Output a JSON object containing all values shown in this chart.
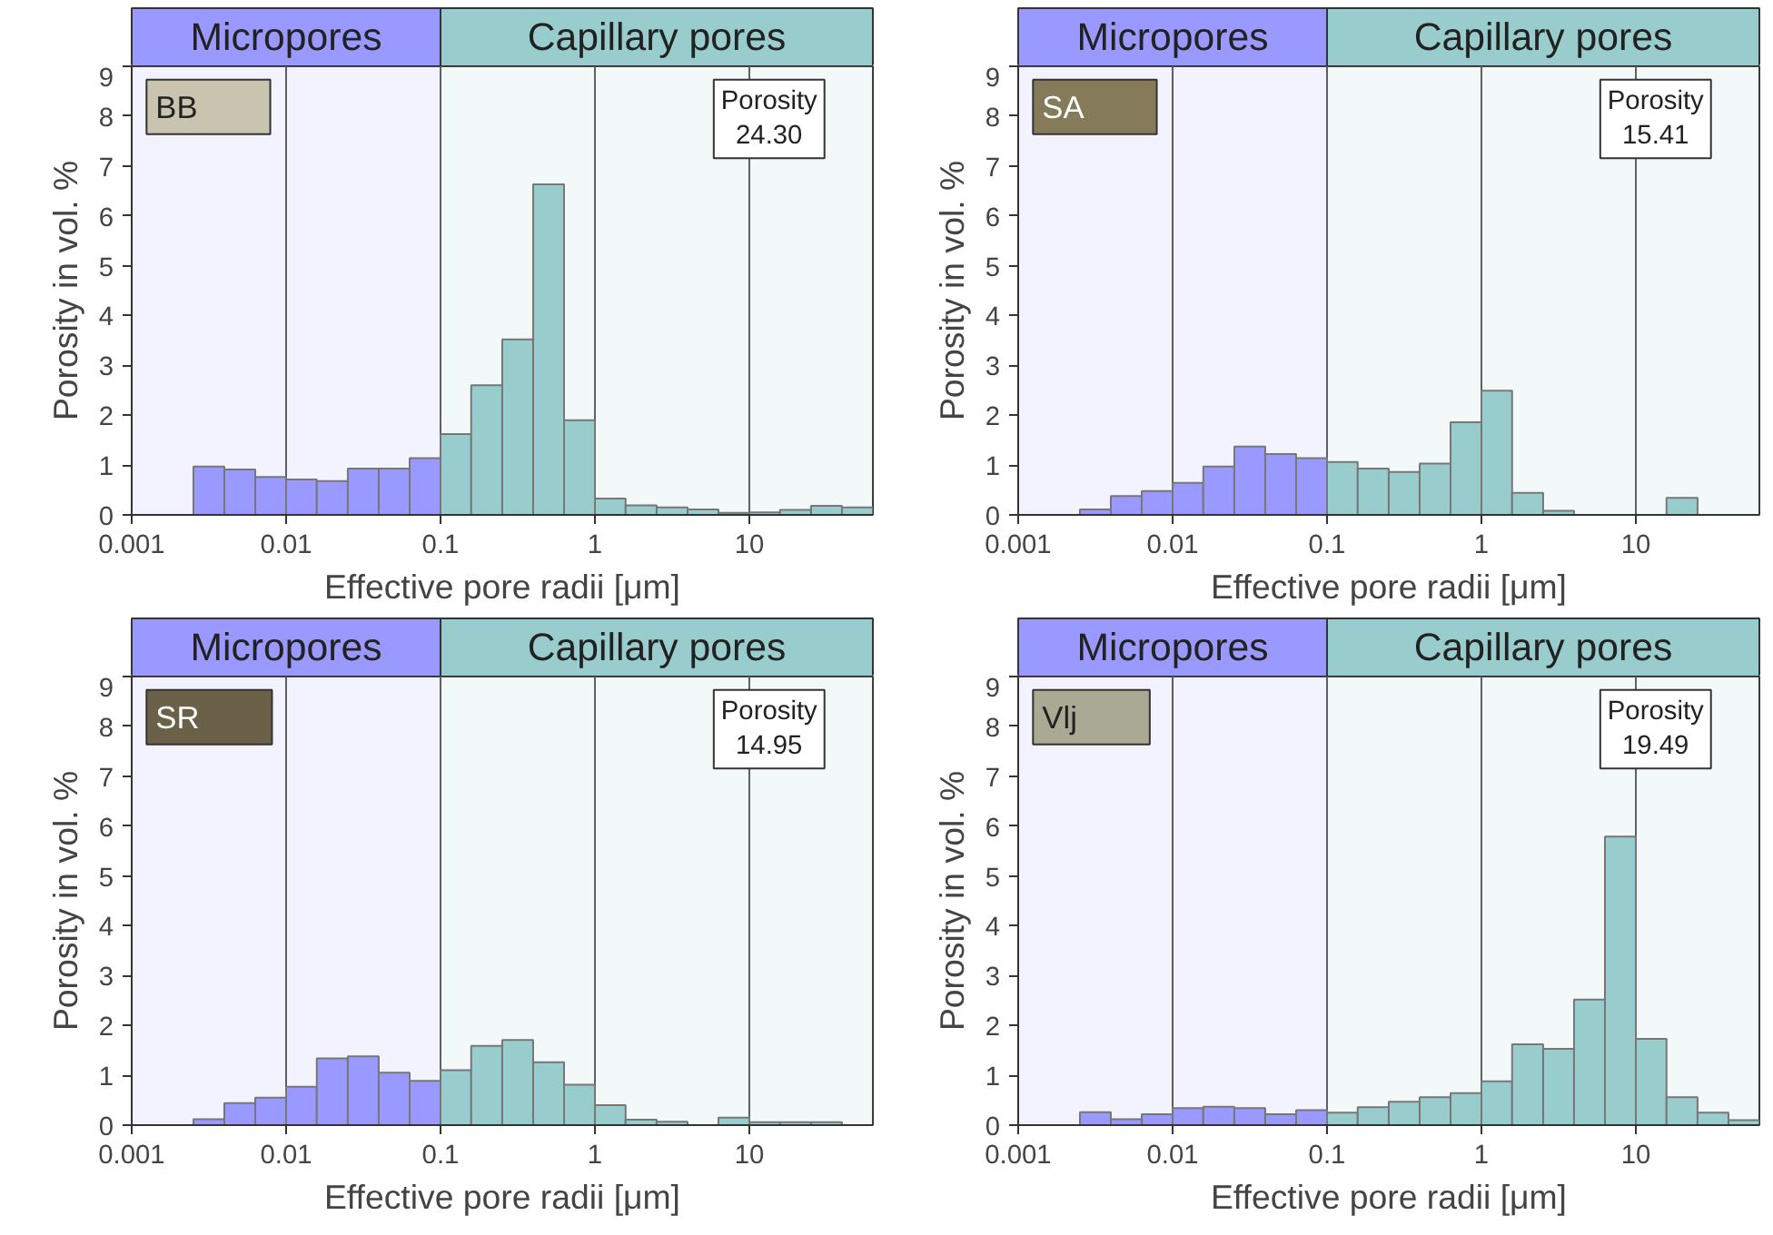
{
  "chart_data": [
    {
      "type": "histogram",
      "title": "BB",
      "xlabel": "Effective pore radii [μm]",
      "ylabel": "Porosity in vol. %",
      "annotations": [
        "Porosity\n24.30"
      ],
      "bins": [
        0.00251,
        0.00398,
        0.00631,
        0.01,
        0.0158,
        0.0251,
        0.0398,
        0.0631,
        0.1,
        0.158,
        0.251,
        0.398,
        0.631,
        1,
        1.58,
        2.51,
        3.98,
        6.31,
        10,
        15.8,
        25.1,
        39.8,
        63.1
      ],
      "values": [
        0.97,
        0.91,
        0.76,
        0.71,
        0.68,
        0.93,
        0.93,
        1.14,
        1.62,
        2.6,
        3.52,
        6.63,
        1.9,
        0.33,
        0.19,
        0.15,
        0.11,
        0.04,
        0.05,
        0.1,
        0.18,
        0.15
      ],
      "colors": [
        "#9999ff",
        "#9999ff",
        "#9999ff",
        "#9999ff",
        "#9999ff",
        "#9999ff",
        "#9999ff",
        "#9999ff",
        "#99cccc",
        "#99cccc",
        "#99cccc",
        "#99cccc",
        "#99cccc",
        "#99cccc",
        "#99cccc",
        "#99cccc",
        "#99cccc",
        "#99cccc",
        "#99cccc",
        "#99cccc",
        "#99cccc",
        "#99cccc"
      ],
      "bands": [
        {
          "axis": "x",
          "from": 0.001,
          "to": 0.1,
          "label": "Micropores",
          "color": "#9999ff"
        },
        {
          "axis": "x",
          "from": 0.1,
          "to": 63.1,
          "label": "Capillary pores",
          "color": "#99cccc"
        }
      ],
      "log": "x",
      "xlim": [
        0.001,
        63.1
      ],
      "xticks": [
        0.001,
        0.01,
        0.1,
        1,
        10
      ],
      "ylim": [
        0,
        9
      ],
      "yticks": [
        0,
        1,
        2,
        3,
        4,
        5,
        6,
        7,
        8,
        9
      ],
      "grid": "x"
    },
    {
      "type": "histogram",
      "title": "SA",
      "xlabel": "Effective pore radii [μm]",
      "ylabel": "Porosity in vol. %",
      "annotations": [
        "Porosity\n15.41"
      ],
      "bins": [
        0.00251,
        0.00398,
        0.00631,
        0.01,
        0.0158,
        0.0251,
        0.0398,
        0.0631,
        0.1,
        0.158,
        0.251,
        0.398,
        0.631,
        1,
        1.58,
        2.51,
        3.98,
        6.31,
        10,
        15.8,
        25.1,
        39.8,
        63.1
      ],
      "values": [
        0.11,
        0.38,
        0.48,
        0.64,
        0.97,
        1.37,
        1.22,
        1.14,
        1.06,
        0.93,
        0.86,
        1.03,
        1.86,
        2.49,
        0.44,
        0.08,
        0,
        0,
        0,
        0.34,
        0,
        0
      ],
      "colors": [
        "#9999ff",
        "#9999ff",
        "#9999ff",
        "#9999ff",
        "#9999ff",
        "#9999ff",
        "#9999ff",
        "#9999ff",
        "#99cccc",
        "#99cccc",
        "#99cccc",
        "#99cccc",
        "#99cccc",
        "#99cccc",
        "#99cccc",
        "#99cccc",
        "#99cccc",
        "#99cccc",
        "#99cccc",
        "#99cccc",
        "#99cccc",
        "#99cccc"
      ],
      "bands": [
        {
          "axis": "x",
          "from": 0.001,
          "to": 0.1,
          "label": "Micropores",
          "color": "#9999ff"
        },
        {
          "axis": "x",
          "from": 0.1,
          "to": 63.1,
          "label": "Capillary pores",
          "color": "#99cccc"
        }
      ],
      "log": "x",
      "xlim": [
        0.001,
        63.1
      ],
      "xticks": [
        0.001,
        0.01,
        0.1,
        1,
        10
      ],
      "ylim": [
        0,
        9
      ],
      "yticks": [
        0,
        1,
        2,
        3,
        4,
        5,
        6,
        7,
        8,
        9
      ],
      "grid": "x"
    },
    {
      "type": "histogram",
      "title": "SR",
      "xlabel": "Effective pore radii [μm]",
      "ylabel": "Porosity in vol. %",
      "annotations": [
        "Porosity\n14.95"
      ],
      "bins": [
        0.00251,
        0.00398,
        0.00631,
        0.01,
        0.0158,
        0.0251,
        0.0398,
        0.0631,
        0.1,
        0.158,
        0.251,
        0.398,
        0.631,
        1,
        1.58,
        2.51,
        3.98,
        6.31,
        10,
        15.8,
        25.1,
        39.8,
        63.1
      ],
      "values": [
        0.12,
        0.44,
        0.55,
        0.77,
        1.34,
        1.38,
        1.05,
        0.89,
        1.1,
        1.59,
        1.71,
        1.26,
        0.81,
        0.4,
        0.11,
        0.07,
        0,
        0.15,
        0.06,
        0.06,
        0.06,
        0
      ],
      "colors": [
        "#9999ff",
        "#9999ff",
        "#9999ff",
        "#9999ff",
        "#9999ff",
        "#9999ff",
        "#9999ff",
        "#9999ff",
        "#99cccc",
        "#99cccc",
        "#99cccc",
        "#99cccc",
        "#99cccc",
        "#99cccc",
        "#99cccc",
        "#99cccc",
        "#99cccc",
        "#99cccc",
        "#99cccc",
        "#99cccc",
        "#99cccc",
        "#99cccc"
      ],
      "bands": [
        {
          "axis": "x",
          "from": 0.001,
          "to": 0.1,
          "label": "Micropores",
          "color": "#9999ff"
        },
        {
          "axis": "x",
          "from": 0.1,
          "to": 63.1,
          "label": "Capillary pores",
          "color": "#99cccc"
        }
      ],
      "log": "x",
      "xlim": [
        0.001,
        63.1
      ],
      "xticks": [
        0.001,
        0.01,
        0.1,
        1,
        10
      ],
      "ylim": [
        0,
        9
      ],
      "yticks": [
        0,
        1,
        2,
        3,
        4,
        5,
        6,
        7,
        8,
        9
      ],
      "grid": "x"
    },
    {
      "type": "histogram",
      "title": "Vlj",
      "xlabel": "Effective pore radii [μm]",
      "ylabel": "Porosity in vol. %",
      "annotations": [
        "Porosity\n19.49"
      ],
      "bins": [
        0.00251,
        0.00398,
        0.00631,
        0.01,
        0.0158,
        0.0251,
        0.0398,
        0.0631,
        0.1,
        0.158,
        0.251,
        0.398,
        0.631,
        1,
        1.58,
        2.51,
        3.98,
        6.31,
        10,
        15.8,
        25.1,
        39.8,
        63.1
      ],
      "values": [
        0.26,
        0.12,
        0.22,
        0.34,
        0.37,
        0.34,
        0.22,
        0.3,
        0.25,
        0.36,
        0.47,
        0.56,
        0.64,
        0.88,
        1.62,
        1.53,
        2.52,
        5.79,
        1.73,
        0.56,
        0.25,
        0.1
      ],
      "colors": [
        "#9999ff",
        "#9999ff",
        "#9999ff",
        "#9999ff",
        "#9999ff",
        "#9999ff",
        "#9999ff",
        "#9999ff",
        "#99cccc",
        "#99cccc",
        "#99cccc",
        "#99cccc",
        "#99cccc",
        "#99cccc",
        "#99cccc",
        "#99cccc",
        "#99cccc",
        "#99cccc",
        "#99cccc",
        "#99cccc",
        "#99cccc",
        "#99cccc"
      ],
      "bands": [
        {
          "axis": "x",
          "from": 0.001,
          "to": 0.1,
          "label": "Micropores",
          "color": "#9999ff"
        },
        {
          "axis": "x",
          "from": 0.1,
          "to": 63.1,
          "label": "Capillary pores",
          "color": "#99cccc"
        }
      ],
      "log": "x",
      "xlim": [
        0.001,
        63.1
      ],
      "xticks": [
        0.001,
        0.01,
        0.1,
        1,
        10
      ],
      "ylim": [
        0,
        9
      ],
      "yticks": [
        0,
        1,
        2,
        3,
        4,
        5,
        6,
        7,
        8,
        9
      ],
      "grid": "x"
    }
  ]
}
